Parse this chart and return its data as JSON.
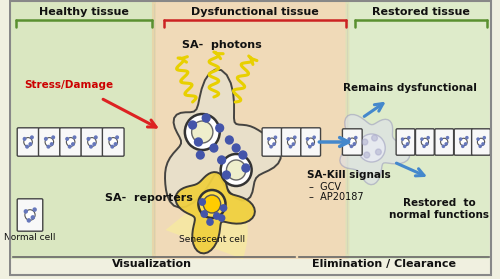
{
  "bg_color": "#f0f0e0",
  "healthy_bg": "#c8e0a8",
  "dysfunctional_bg": "#f0c898",
  "restored_bg": "#d0e8b8",
  "title_healthy": "Healthy tissue",
  "title_dysfunctional": "Dysfunctional tissue",
  "title_restored": "Restored tissue",
  "label_visualization": "Visualization",
  "label_elimination": "Elimination / Clearance",
  "label_sa_photons": "SA-  photons",
  "label_stress": "Stress/Damage",
  "label_sa_reporters": "SA-  reporters",
  "label_normal_cell": "Normal cell",
  "label_senescent_cell": "Senescent cell",
  "label_remains": "Remains dysfunctional",
  "label_restored": "Restored  to\nnormal functions",
  "label_sa_kill": "SA-Kill signals",
  "label_gcv": "GCV",
  "label_ap": "AP20187",
  "healthy_bracket_color": "#5a9030",
  "dysfunctional_bracket_color": "#cc2222",
  "restored_bracket_color": "#5a9030",
  "arrow_blue": "#4488cc",
  "arrow_red": "#dd2222",
  "text_color": "#111111",
  "yellow_color": "#f0d800",
  "cell_border": "#333333",
  "senescent_color": "#f0d040",
  "normal_cell_fill": "#f8f8f8"
}
